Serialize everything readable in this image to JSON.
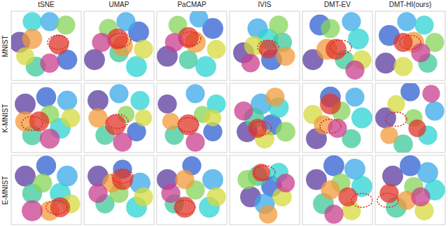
{
  "chart_data": [
    {
      "type": "scatter",
      "title": "tSNE",
      "ylabel": "MNIST",
      "x": [
        12,
        80,
        55,
        30,
        35,
        78,
        20,
        30,
        68,
        55
      ],
      "y": [
        55,
        30,
        85,
        85,
        20,
        80,
        35,
        60,
        52,
        25
      ],
      "sizes": [
        60,
        55,
        50,
        50,
        55,
        50,
        45,
        55,
        55,
        50
      ],
      "colors": [
        "#5b3a9e",
        "#2f5fd0",
        "#3aa8e8",
        "#2cd3d3",
        "#3cc99a",
        "#86d45a",
        "#d6d93c",
        "#f29a3a",
        "#e0352b",
        "#c93f8f"
      ],
      "xlim": [
        0,
        100
      ],
      "ylim": [
        0,
        100
      ],
      "tick_labels": false,
      "highlight": {
        "x": 67,
        "y": 55
      }
    },
    {
      "type": "scatter",
      "title": "UMAP",
      "x": [
        15,
        78,
        60,
        75,
        50,
        35,
        85,
        55,
        48,
        25
      ],
      "y": [
        30,
        70,
        85,
        20,
        40,
        75,
        45,
        50,
        60,
        55
      ],
      "sizes": [
        30,
        30,
        25,
        30,
        25,
        25,
        25,
        30,
        30,
        25
      ],
      "colors": [
        "#5b3a9e",
        "#2f5fd0",
        "#3aa8e8",
        "#2cd3d3",
        "#3cc99a",
        "#86d45a",
        "#d6d93c",
        "#f29a3a",
        "#e0352b",
        "#c93f8f"
      ],
      "xlim": [
        0,
        100
      ],
      "ylim": [
        0,
        100
      ],
      "tick_labels": false,
      "highlight": {
        "x": 52,
        "y": 58
      }
    },
    {
      "type": "scatter",
      "title": "PaCMAP",
      "x": [
        15,
        80,
        60,
        70,
        45,
        30,
        85,
        55,
        45,
        25
      ],
      "y": [
        35,
        75,
        90,
        20,
        30,
        80,
        45,
        55,
        62,
        55
      ],
      "sizes": [
        25,
        25,
        20,
        25,
        20,
        20,
        20,
        25,
        25,
        20
      ],
      "colors": [
        "#5b3a9e",
        "#2f5fd0",
        "#3aa8e8",
        "#2cd3d3",
        "#3cc99a",
        "#86d45a",
        "#d6d93c",
        "#f29a3a",
        "#e0352b",
        "#c93f8f"
      ],
      "xlim": [
        0,
        100
      ],
      "ylim": [
        0,
        100
      ],
      "tick_labels": false,
      "highlight": {
        "x": 48,
        "y": 60
      }
    },
    {
      "type": "scatter",
      "title": "IVIS",
      "x": [
        20,
        60,
        40,
        55,
        75,
        70,
        35,
        80,
        55,
        30
      ],
      "y": [
        40,
        30,
        75,
        60,
        55,
        80,
        50,
        35,
        45,
        25
      ],
      "sizes": [
        90,
        90,
        85,
        90,
        80,
        75,
        80,
        75,
        70,
        70
      ],
      "colors": [
        "#5b3a9e",
        "#2f5fd0",
        "#3aa8e8",
        "#2cd3d3",
        "#3cc99a",
        "#86d45a",
        "#d6d93c",
        "#f29a3a",
        "#e0352b",
        "#c93f8f"
      ],
      "xlim": [
        0,
        100
      ],
      "ylim": [
        0,
        100
      ],
      "tick_labels": false,
      "highlight": {
        "x": 55,
        "y": 48
      }
    },
    {
      "type": "scatter",
      "title": "DMT-EV",
      "x": [
        15,
        25,
        70,
        80,
        60,
        40,
        85,
        35,
        48,
        75
      ],
      "y": [
        30,
        80,
        85,
        60,
        30,
        75,
        30,
        45,
        45,
        15
      ],
      "sizes": [
        30,
        30,
        25,
        30,
        25,
        25,
        25,
        30,
        30,
        25
      ],
      "colors": [
        "#5b3a9e",
        "#2f5fd0",
        "#3aa8e8",
        "#2cd3d3",
        "#3cc99a",
        "#86d45a",
        "#d6d93c",
        "#f29a3a",
        "#e0352b",
        "#c93f8f"
      ],
      "xlim": [
        0,
        100
      ],
      "ylim": [
        0,
        100
      ],
      "tick_labels": false,
      "highlight": {
        "x": 55,
        "y": 48
      }
    },
    {
      "type": "scatter",
      "title": "DMT-HI(ours)",
      "x": [
        15,
        20,
        45,
        70,
        75,
        85,
        40,
        55,
        40,
        65
      ],
      "y": [
        25,
        65,
        85,
        80,
        25,
        55,
        20,
        55,
        55,
        40
      ],
      "sizes": [
        30,
        30,
        25,
        25,
        25,
        25,
        25,
        30,
        25,
        25
      ],
      "colors": [
        "#5b3a9e",
        "#2f5fd0",
        "#3aa8e8",
        "#2cd3d3",
        "#3cc99a",
        "#86d45a",
        "#d6d93c",
        "#f29a3a",
        "#e0352b",
        "#c93f8f"
      ],
      "xlim": [
        0,
        100
      ],
      "ylim": [
        0,
        100
      ],
      "tick_labels": false,
      "highlight": {
        "x": 50,
        "y": 55
      }
    },
    {
      "type": "scatter",
      "ylabel": "K-MNIST",
      "x": [
        20,
        50,
        80,
        70,
        30,
        55,
        85,
        20,
        40,
        55
      ],
      "y": [
        70,
        80,
        75,
        35,
        25,
        55,
        50,
        45,
        45,
        20
      ],
      "sizes": [
        55,
        50,
        50,
        55,
        50,
        45,
        45,
        50,
        50,
        50
      ],
      "colors": [
        "#5b3a9e",
        "#2f5fd0",
        "#3aa8e8",
        "#2cd3d3",
        "#3cc99a",
        "#86d45a",
        "#d6d93c",
        "#f29a3a",
        "#e0352b",
        "#c93f8f"
      ],
      "xlim": [
        0,
        100
      ],
      "ylim": [
        0,
        100
      ],
      "tick_labels": false,
      "highlight": {
        "x": 30,
        "y": 42
      }
    },
    {
      "type": "scatter",
      "x": [
        20,
        75,
        50,
        80,
        30,
        60,
        85,
        20,
        45,
        55
      ],
      "y": [
        75,
        30,
        85,
        75,
        25,
        55,
        50,
        50,
        40,
        15
      ],
      "sizes": [
        30,
        25,
        25,
        25,
        25,
        20,
        20,
        25,
        30,
        25
      ],
      "colors": [
        "#5b3a9e",
        "#2f5fd0",
        "#3aa8e8",
        "#2cd3d3",
        "#3cc99a",
        "#86d45a",
        "#d6d93c",
        "#f29a3a",
        "#e0352b",
        "#c93f8f"
      ],
      "xlim": [
        0,
        100
      ],
      "ylim": [
        0,
        100
      ],
      "tick_labels": false,
      "highlight": {
        "x": 48,
        "y": 45
      }
    },
    {
      "type": "scatter",
      "x": [
        15,
        80,
        55,
        85,
        25,
        65,
        80,
        20,
        45,
        55
      ],
      "y": [
        70,
        30,
        85,
        70,
        25,
        55,
        50,
        45,
        40,
        15
      ],
      "sizes": [
        25,
        25,
        25,
        25,
        25,
        20,
        20,
        20,
        30,
        25
      ],
      "colors": [
        "#5b3a9e",
        "#2f5fd0",
        "#3aa8e8",
        "#2cd3d3",
        "#3cc99a",
        "#86d45a",
        "#d6d93c",
        "#f29a3a",
        "#e0352b",
        "#c93f8f"
      ],
      "xlim": [
        0,
        100
      ],
      "ylim": [
        0,
        100
      ],
      "tick_labels": false,
      "highlight": {
        "x": 45,
        "y": 40
      }
    },
    {
      "type": "scatter",
      "x": [
        25,
        60,
        45,
        70,
        35,
        80,
        50,
        65,
        40,
        20
      ],
      "y": [
        30,
        40,
        70,
        65,
        50,
        30,
        20,
        80,
        35,
        60
      ],
      "sizes": [
        85,
        85,
        85,
        80,
        80,
        75,
        75,
        70,
        70,
        70
      ],
      "colors": [
        "#5b3a9e",
        "#2f5fd0",
        "#3aa8e8",
        "#2cd3d3",
        "#3cc99a",
        "#86d45a",
        "#d6d93c",
        "#f29a3a",
        "#e0352b",
        "#c93f8f"
      ],
      "xlim": [
        0,
        100
      ],
      "ylim": [
        0,
        100
      ],
      "tick_labels": false,
      "highlight": {
        "x": 45,
        "y": 35
      }
    },
    {
      "type": "scatter",
      "x": [
        20,
        40,
        75,
        85,
        70,
        55,
        15,
        30,
        40,
        50
      ],
      "y": [
        20,
        80,
        80,
        50,
        20,
        60,
        55,
        40,
        70,
        35
      ],
      "sizes": [
        30,
        30,
        25,
        30,
        25,
        25,
        25,
        25,
        30,
        25
      ],
      "colors": [
        "#5b3a9e",
        "#2f5fd0",
        "#3aa8e8",
        "#2cd3d3",
        "#3cc99a",
        "#86d45a",
        "#d6d93c",
        "#f29a3a",
        "#e0352b",
        "#c93f8f"
      ],
      "xlim": [
        0,
        100
      ],
      "ylim": [
        0,
        100
      ],
      "tick_labels": false,
      "highlight": {
        "x": 40,
        "y": 38
      }
    },
    {
      "type": "scatter",
      "x": [
        15,
        50,
        85,
        75,
        40,
        55,
        30,
        20,
        60,
        80
      ],
      "y": [
        50,
        88,
        60,
        25,
        12,
        50,
        70,
        25,
        35,
        85
      ],
      "sizes": [
        35,
        30,
        30,
        30,
        30,
        25,
        25,
        25,
        25,
        25
      ],
      "colors": [
        "#5b3a9e",
        "#2f5fd0",
        "#3aa8e8",
        "#2cd3d3",
        "#3cc99a",
        "#86d45a",
        "#d6d93c",
        "#f29a3a",
        "#e0352b",
        "#c93f8f"
      ],
      "xlim": [
        0,
        100
      ],
      "ylim": [
        0,
        100
      ],
      "tick_labels": false,
      "highlight": {
        "x": 30,
        "y": 48
      }
    },
    {
      "type": "scatter",
      "ylabel": "E-MNIST",
      "x": [
        20,
        50,
        80,
        70,
        30,
        45,
        85,
        55,
        70,
        30
      ],
      "y": [
        70,
        85,
        70,
        45,
        45,
        60,
        30,
        20,
        25,
        20
      ],
      "sizes": [
        55,
        50,
        55,
        55,
        50,
        45,
        45,
        50,
        50,
        55
      ],
      "colors": [
        "#5b3a9e",
        "#2f5fd0",
        "#3aa8e8",
        "#2cd3d3",
        "#3cc99a",
        "#86d45a",
        "#d6d93c",
        "#f29a3a",
        "#e0352b",
        "#c93f8f"
      ],
      "xlim": [
        0,
        100
      ],
      "ylim": [
        0,
        100
      ],
      "tick_labels": false,
      "highlight": {
        "x": 65,
        "y": 25
      }
    },
    {
      "type": "scatter",
      "x": [
        20,
        55,
        80,
        75,
        30,
        50,
        85,
        40,
        55,
        20
      ],
      "y": [
        70,
        80,
        60,
        25,
        30,
        45,
        40,
        60,
        65,
        45
      ],
      "sizes": [
        30,
        25,
        30,
        30,
        25,
        25,
        25,
        25,
        30,
        25
      ],
      "colors": [
        "#5b3a9e",
        "#2f5fd0",
        "#3aa8e8",
        "#2cd3d3",
        "#3cc99a",
        "#86d45a",
        "#d6d93c",
        "#f29a3a",
        "#e0352b",
        "#c93f8f"
      ],
      "xlim": [
        0,
        100
      ],
      "ylim": [
        0,
        100
      ],
      "tick_labels": false,
      "highlight": {
        "x": 55,
        "y": 70
      }
    },
    {
      "type": "scatter",
      "x": [
        15,
        50,
        80,
        75,
        25,
        55,
        85,
        40,
        40,
        20
      ],
      "y": [
        65,
        85,
        65,
        25,
        30,
        50,
        40,
        65,
        25,
        45
      ],
      "sizes": [
        30,
        25,
        30,
        30,
        25,
        25,
        25,
        25,
        30,
        25
      ],
      "colors": [
        "#5b3a9e",
        "#2f5fd0",
        "#3aa8e8",
        "#2cd3d3",
        "#3cc99a",
        "#86d45a",
        "#d6d93c",
        "#f29a3a",
        "#e0352b",
        "#c93f8f"
      ],
      "xlim": [
        0,
        100
      ],
      "ylim": [
        0,
        100
      ],
      "tick_labels": false,
      "highlight": {
        "x": 40,
        "y": 25
      }
    },
    {
      "type": "scatter",
      "x": [
        30,
        60,
        50,
        70,
        40,
        25,
        75,
        55,
        45,
        80
      ],
      "y": [
        40,
        55,
        30,
        75,
        70,
        65,
        40,
        15,
        75,
        60
      ],
      "sizes": [
        95,
        95,
        90,
        85,
        85,
        80,
        80,
        75,
        70,
        75
      ],
      "colors": [
        "#5b3a9e",
        "#2f5fd0",
        "#3aa8e8",
        "#2cd3d3",
        "#3cc99a",
        "#86d45a",
        "#d6d93c",
        "#f29a3a",
        "#e0352b",
        "#c93f8f"
      ],
      "xlim": [
        0,
        100
      ],
      "ylim": [
        0,
        100
      ],
      "tick_labels": false,
      "highlight": {
        "x": 50,
        "y": 75
      }
    },
    {
      "type": "scatter",
      "x": [
        20,
        45,
        75,
        85,
        30,
        55,
        70,
        40,
        65,
        45
      ],
      "y": [
        65,
        85,
        80,
        55,
        30,
        60,
        20,
        50,
        40,
        15
      ],
      "sizes": [
        30,
        30,
        30,
        30,
        30,
        25,
        25,
        25,
        25,
        25
      ],
      "colors": [
        "#5b3a9e",
        "#2f5fd0",
        "#3aa8e8",
        "#2cd3d3",
        "#3cc99a",
        "#86d45a",
        "#d6d93c",
        "#f29a3a",
        "#e0352b",
        "#c93f8f"
      ],
      "xlim": [
        0,
        100
      ],
      "ylim": [
        0,
        100
      ],
      "tick_labels": false,
      "highlight": {
        "x": 85,
        "y": 35
      }
    },
    {
      "type": "scatter",
      "x": [
        25,
        50,
        75,
        85,
        30,
        55,
        70,
        45,
        20,
        65
      ],
      "y": [
        70,
        85,
        75,
        50,
        25,
        55,
        20,
        35,
        45,
        40
      ],
      "sizes": [
        30,
        30,
        30,
        30,
        30,
        25,
        25,
        25,
        25,
        25
      ],
      "colors": [
        "#5b3a9e",
        "#2f5fd0",
        "#3aa8e8",
        "#2cd3d3",
        "#3cc99a",
        "#86d45a",
        "#d6d93c",
        "#f29a3a",
        "#e0352b",
        "#c93f8f"
      ],
      "xlim": [
        0,
        100
      ],
      "ylim": [
        0,
        100
      ],
      "tick_labels": false,
      "highlight": {
        "x": 18,
        "y": 35
      }
    }
  ]
}
